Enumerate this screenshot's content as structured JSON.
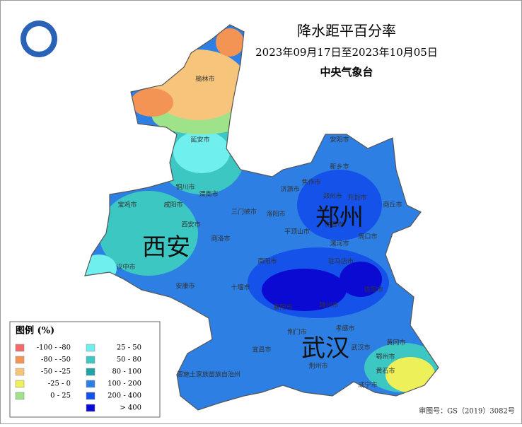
{
  "header": {
    "title": "降水距平百分率",
    "date_range": "2023年09月17日至2023年10月05日",
    "agency": "中央气象台"
  },
  "legend": {
    "title": "图例 (%)",
    "items": [
      {
        "label": "-100 - -80",
        "color": "#f26a6a"
      },
      {
        "label": "-80 - -50",
        "color": "#f39455"
      },
      {
        "label": "-50 - -25",
        "color": "#f6c47a"
      },
      {
        "label": "-25 - 0",
        "color": "#eef05a"
      },
      {
        "label": "0 - 25",
        "color": "#9ee28a"
      },
      {
        "label": "25 - 50",
        "color": "#6ff0ee"
      },
      {
        "label": "50 - 80",
        "color": "#3cc7c3"
      },
      {
        "label": "80 - 100",
        "color": "#1fa4a6"
      },
      {
        "label": "100 - 200",
        "color": "#2d7fe3"
      },
      {
        "label": "200 - 400",
        "color": "#1452ea"
      },
      {
        "label": "> 400",
        "color": "#0a0ad2"
      }
    ]
  },
  "cities": [
    "榆林市",
    "延安市",
    "铜川市",
    "渭南市",
    "咸阳市",
    "宝鸡市",
    "西安市",
    "汉中市",
    "安康市",
    "商洛市",
    "三门峡市",
    "洛阳市",
    "济源市",
    "焦作市",
    "新乡市",
    "安阳市",
    "郑州市",
    "开封市",
    "商丘市",
    "平顶山市",
    "许昌市",
    "漯河市",
    "周口市",
    "驻马店市",
    "南阳市",
    "信阳市",
    "十堰市",
    "襄阳市",
    "随州市",
    "孝感市",
    "宜昌市",
    "荆门市",
    "恩施土家族苗族自治州",
    "荆州市",
    "鄂州市",
    "黄冈市",
    "黄石市",
    "咸宁市",
    "武汉市"
  ],
  "provinces": [
    "西安",
    "郑州",
    "武汉"
  ],
  "footer": {
    "approval": "审图号：GS（2019）3082号"
  }
}
